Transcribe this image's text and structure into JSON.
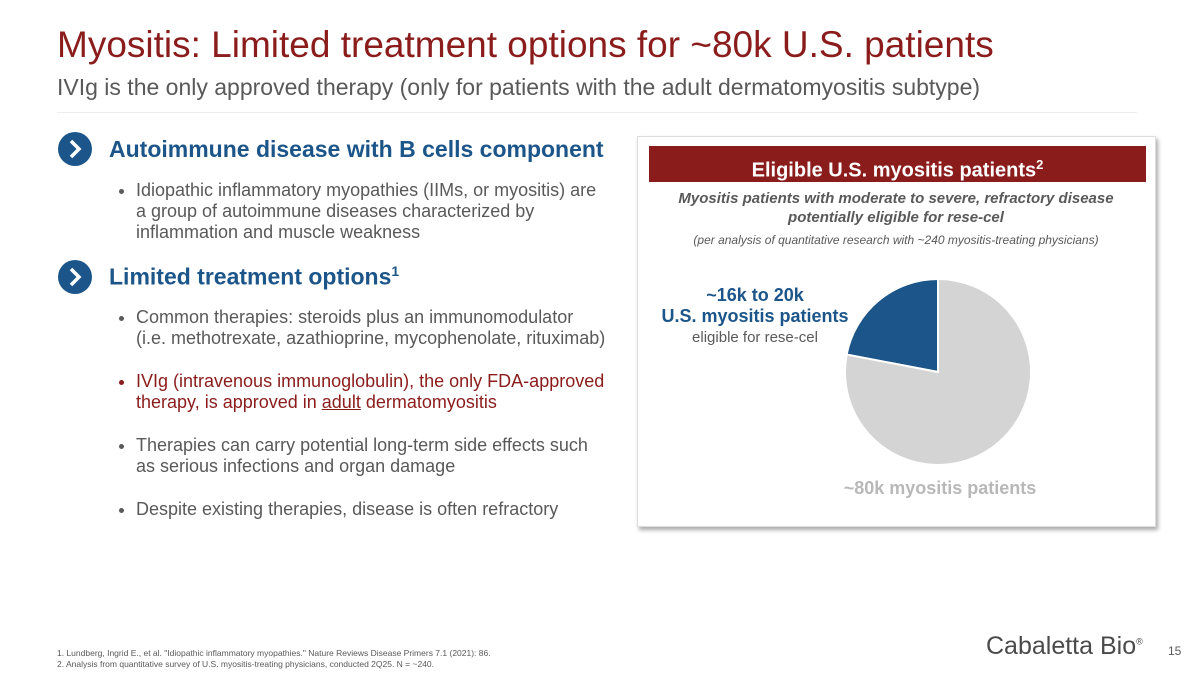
{
  "header": {
    "title": "Myositis: Limited treatment options for ~80k U.S. patients",
    "subtitle": "IVIg is the only approved therapy (only for patients with the adult dermatomyositis subtype)"
  },
  "sections": [
    {
      "heading": "Autoimmune disease with B cells component",
      "bullets": [
        "Idiopathic inflammatory myopathies (IIMs, or myositis) are a group of autoimmune diseases characterized by inflammation and muscle weakness"
      ]
    },
    {
      "heading": "Limited treatment options",
      "heading_note": "1",
      "bullets": [
        "Common therapies: steroids plus an immunomodulator (i.e. methotrexate, azathioprine, mycophenolate, rituximab)",
        [
          "IVIg (intravenous immunoglobulin), the only FDA-approved therapy, is approved in ",
          "adult",
          " dermatomyositis"
        ],
        "Therapies can carry potential long-term side effects such as serious infections and organ damage",
        "Despite existing therapies, disease is often refractory"
      ]
    }
  ],
  "panel": {
    "title": "Eligible U.S. myositis patients",
    "title_note": "2",
    "subtitle": "Myositis patients with moderate to severe, refractory disease potentially eligible for rese-cel",
    "note": "(per analysis of quantitative research with ~240 myositis-treating physicians)"
  },
  "chart_data": {
    "type": "pie",
    "values": [
      22,
      78
    ],
    "colors": [
      "#1c5589",
      "#d4d4d4"
    ],
    "annotations": {
      "highlight": [
        "~16k to 20k",
        "U.S. myositis patients",
        "eligible for rese-cel"
      ],
      "total": "~80k myositis patients"
    }
  },
  "footnotes": [
    "1.  Lundberg, Ingrid E., et al. \"Idiopathic inflammatory myopathies.\" Nature Reviews Disease Primers 7.1 (2021): 86.",
    "2.  Analysis from quantitative survey of U.S. myositis-treating physicians, conducted 2Q25. N = ~240."
  ],
  "logo": {
    "name": "Cabaletta Bio",
    "mark": "®"
  },
  "page_number": "15"
}
